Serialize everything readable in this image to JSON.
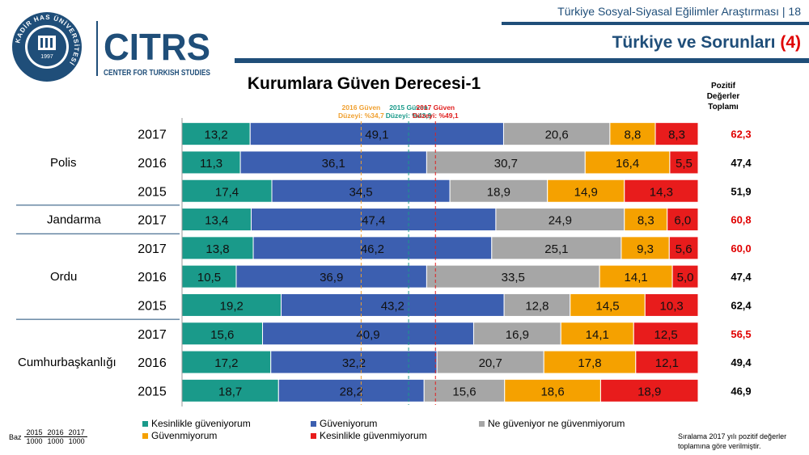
{
  "header": {
    "report_title": "Türkiye Sosyal-Siyasal Eğilimler Araştırması | 18",
    "section_title": "Türkiye ve Sorunları",
    "section_number": "(4)"
  },
  "logos": {
    "khas_ring_text": "KADİR HAS ÜNİVERSİTESİ",
    "khas_year": "1997",
    "citrs_name": "CITRS",
    "citrs_sub": "CENTER FOR TURKISH STUDIES"
  },
  "colors": {
    "kesinlikle_guveniyorum": "#1a9a8a",
    "guveniyorum": "#3c5fb0",
    "ne_ne": "#a6a6a6",
    "guvenmiyorum": "#f5a100",
    "kesinlikle_guvenmiyorum": "#e81c1c",
    "ref_2016": "#f0a030",
    "ref_2015": "#1a9a8a",
    "ref_2017": "#e02020",
    "positive_highlight": "#e00000"
  },
  "chart_data": {
    "type": "bar",
    "orientation": "horizontal-stacked-100",
    "title": "Kurumlara Güven Derecesi-1",
    "positive_header": "Pozitif Değerler Toplamı",
    "groups": [
      {
        "name": "Polis",
        "rows": [
          {
            "year": "2017",
            "values": [
              13.2,
              49.1,
              20.6,
              8.8,
              8.3
            ],
            "positive": "62,3",
            "highlight": true
          },
          {
            "year": "2016",
            "values": [
              11.3,
              36.1,
              30.7,
              16.4,
              5.5
            ],
            "positive": "47,4",
            "highlight": false
          },
          {
            "year": "2015",
            "values": [
              17.4,
              34.5,
              18.9,
              14.9,
              14.3
            ],
            "positive": "51,9",
            "highlight": false
          }
        ]
      },
      {
        "name": "Jandarma",
        "rows": [
          {
            "year": "2017",
            "values": [
              13.4,
              47.4,
              24.9,
              8.3,
              6.0
            ],
            "positive": "60,8",
            "highlight": true
          }
        ]
      },
      {
        "name": "Ordu",
        "rows": [
          {
            "year": "2017",
            "values": [
              13.8,
              46.2,
              25.1,
              9.3,
              5.6
            ],
            "positive": "60,0",
            "highlight": true
          },
          {
            "year": "2016",
            "values": [
              10.5,
              36.9,
              33.5,
              14.1,
              5.0
            ],
            "positive": "47,4",
            "highlight": false
          },
          {
            "year": "2015",
            "values": [
              19.2,
              43.2,
              12.8,
              14.5,
              10.3
            ],
            "positive": "62,4",
            "highlight": false
          }
        ]
      },
      {
        "name": "Cumhurbaşkanlığı",
        "rows": [
          {
            "year": "2017",
            "values": [
              15.6,
              40.9,
              16.9,
              14.1,
              12.5
            ],
            "positive": "56,5",
            "highlight": true
          },
          {
            "year": "2016",
            "values": [
              17.2,
              32.2,
              20.7,
              17.8,
              12.1
            ],
            "positive": "49,4",
            "highlight": false
          },
          {
            "year": "2015",
            "values": [
              18.7,
              28.2,
              15.6,
              18.6,
              18.9
            ],
            "positive": "46,9",
            "highlight": false
          }
        ]
      }
    ],
    "series": [
      {
        "name": "Kesinlikle güveniyorum"
      },
      {
        "name": "Güveniyorum"
      },
      {
        "name": "Ne güveniyor ne güvenmiyorum"
      },
      {
        "name": "Güvenmiyorum"
      },
      {
        "name": "Kesinlikle güvenmiyorum"
      }
    ],
    "reference_lines": [
      {
        "label_line1": "2016 Güven",
        "label_line2": "Düzeyi: %34,7",
        "value": 34.7,
        "year": "2016"
      },
      {
        "label_line1": "2015 Güven",
        "label_line2": "Düzeyi: %43,9",
        "value": 43.9,
        "year": "2015"
      },
      {
        "label_line1": "2017 Güven",
        "label_line2": "Düzeyi: %49,1",
        "value": 49.1,
        "year": "2017"
      }
    ]
  },
  "baz_table": {
    "label": "Baz",
    "years": [
      "2015",
      "2016",
      "2017"
    ],
    "values": [
      "1000",
      "1000",
      "1000"
    ]
  },
  "note": {
    "line1": "Sıralama 2017 yılı pozitif değerler",
    "line2": "toplamına göre verilmiştir."
  }
}
